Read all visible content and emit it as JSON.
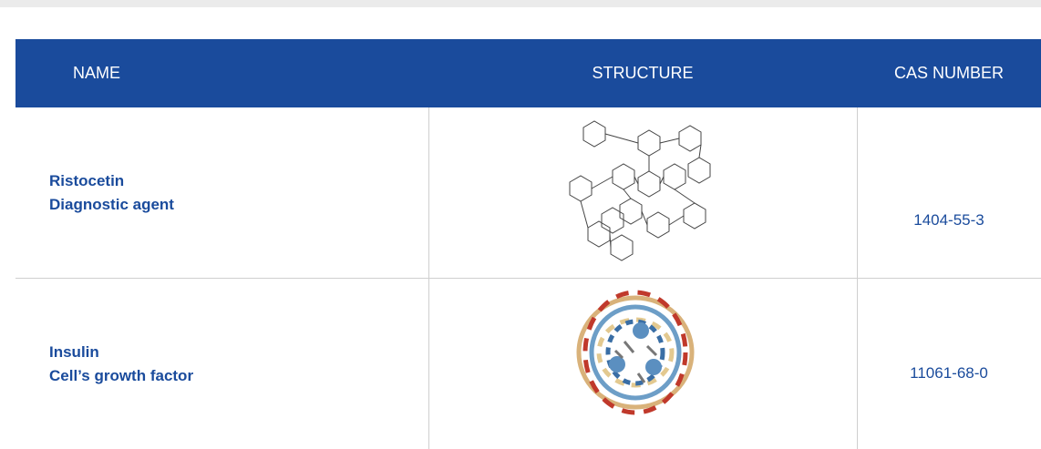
{
  "table": {
    "header": [
      "NAME",
      "STRUCTURE",
      "CAS NUMBER"
    ],
    "rows": [
      {
        "name": "Ristocetin",
        "description": "Diagnostic agent",
        "cas": "1404-55-3"
      },
      {
        "name": "Insulin",
        "description": "Cell’s growth factor",
        "cas": "11061-68-0"
      }
    ]
  }
}
